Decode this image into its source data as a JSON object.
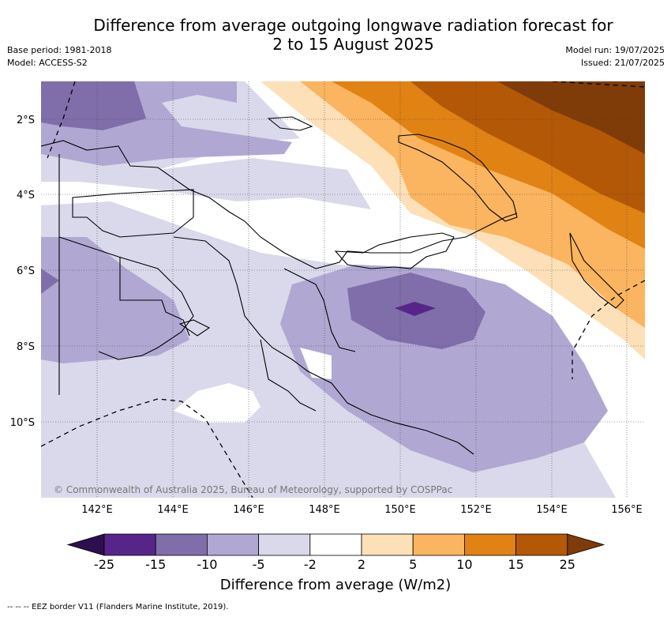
{
  "title_line1": "Difference from average outgoing longwave radiation forecast for",
  "title_line2": "2 to 15 August 2025",
  "base_period": "Base period: 1981-2018",
  "model": "Model: ACCESS-S2",
  "model_run": "Model run: 19/07/2025",
  "issued": "Issued: 21/07/2025",
  "copyright": "© Commonwealth of Australia 2025, Bureau of Meteorology, supported by COSPPac",
  "lat_labels": [
    "2°S",
    "4°S",
    "6°S",
    "8°S",
    "10°S"
  ],
  "lon_labels": [
    "142°E",
    "144°E",
    "146°E",
    "148°E",
    "150°E",
    "152°E",
    "154°E",
    "156°E"
  ],
  "colorbar": {
    "title": "Difference from average (W/m2)",
    "ticks": [
      "-25",
      "-15",
      "-10",
      "-5",
      "-2",
      "2",
      "5",
      "10",
      "15",
      "25"
    ],
    "colors": [
      "#2d0f4f",
      "#57258a",
      "#7f6eaa",
      "#b0a8d2",
      "#d9d9eb",
      "#ffffff",
      "#fde0b8",
      "#fbb45f",
      "#e08214",
      "#b35806",
      "#7f3b08"
    ]
  },
  "footer": "-- -- -- EEZ border V11 (Flanders Marine Institute, 2019)."
}
